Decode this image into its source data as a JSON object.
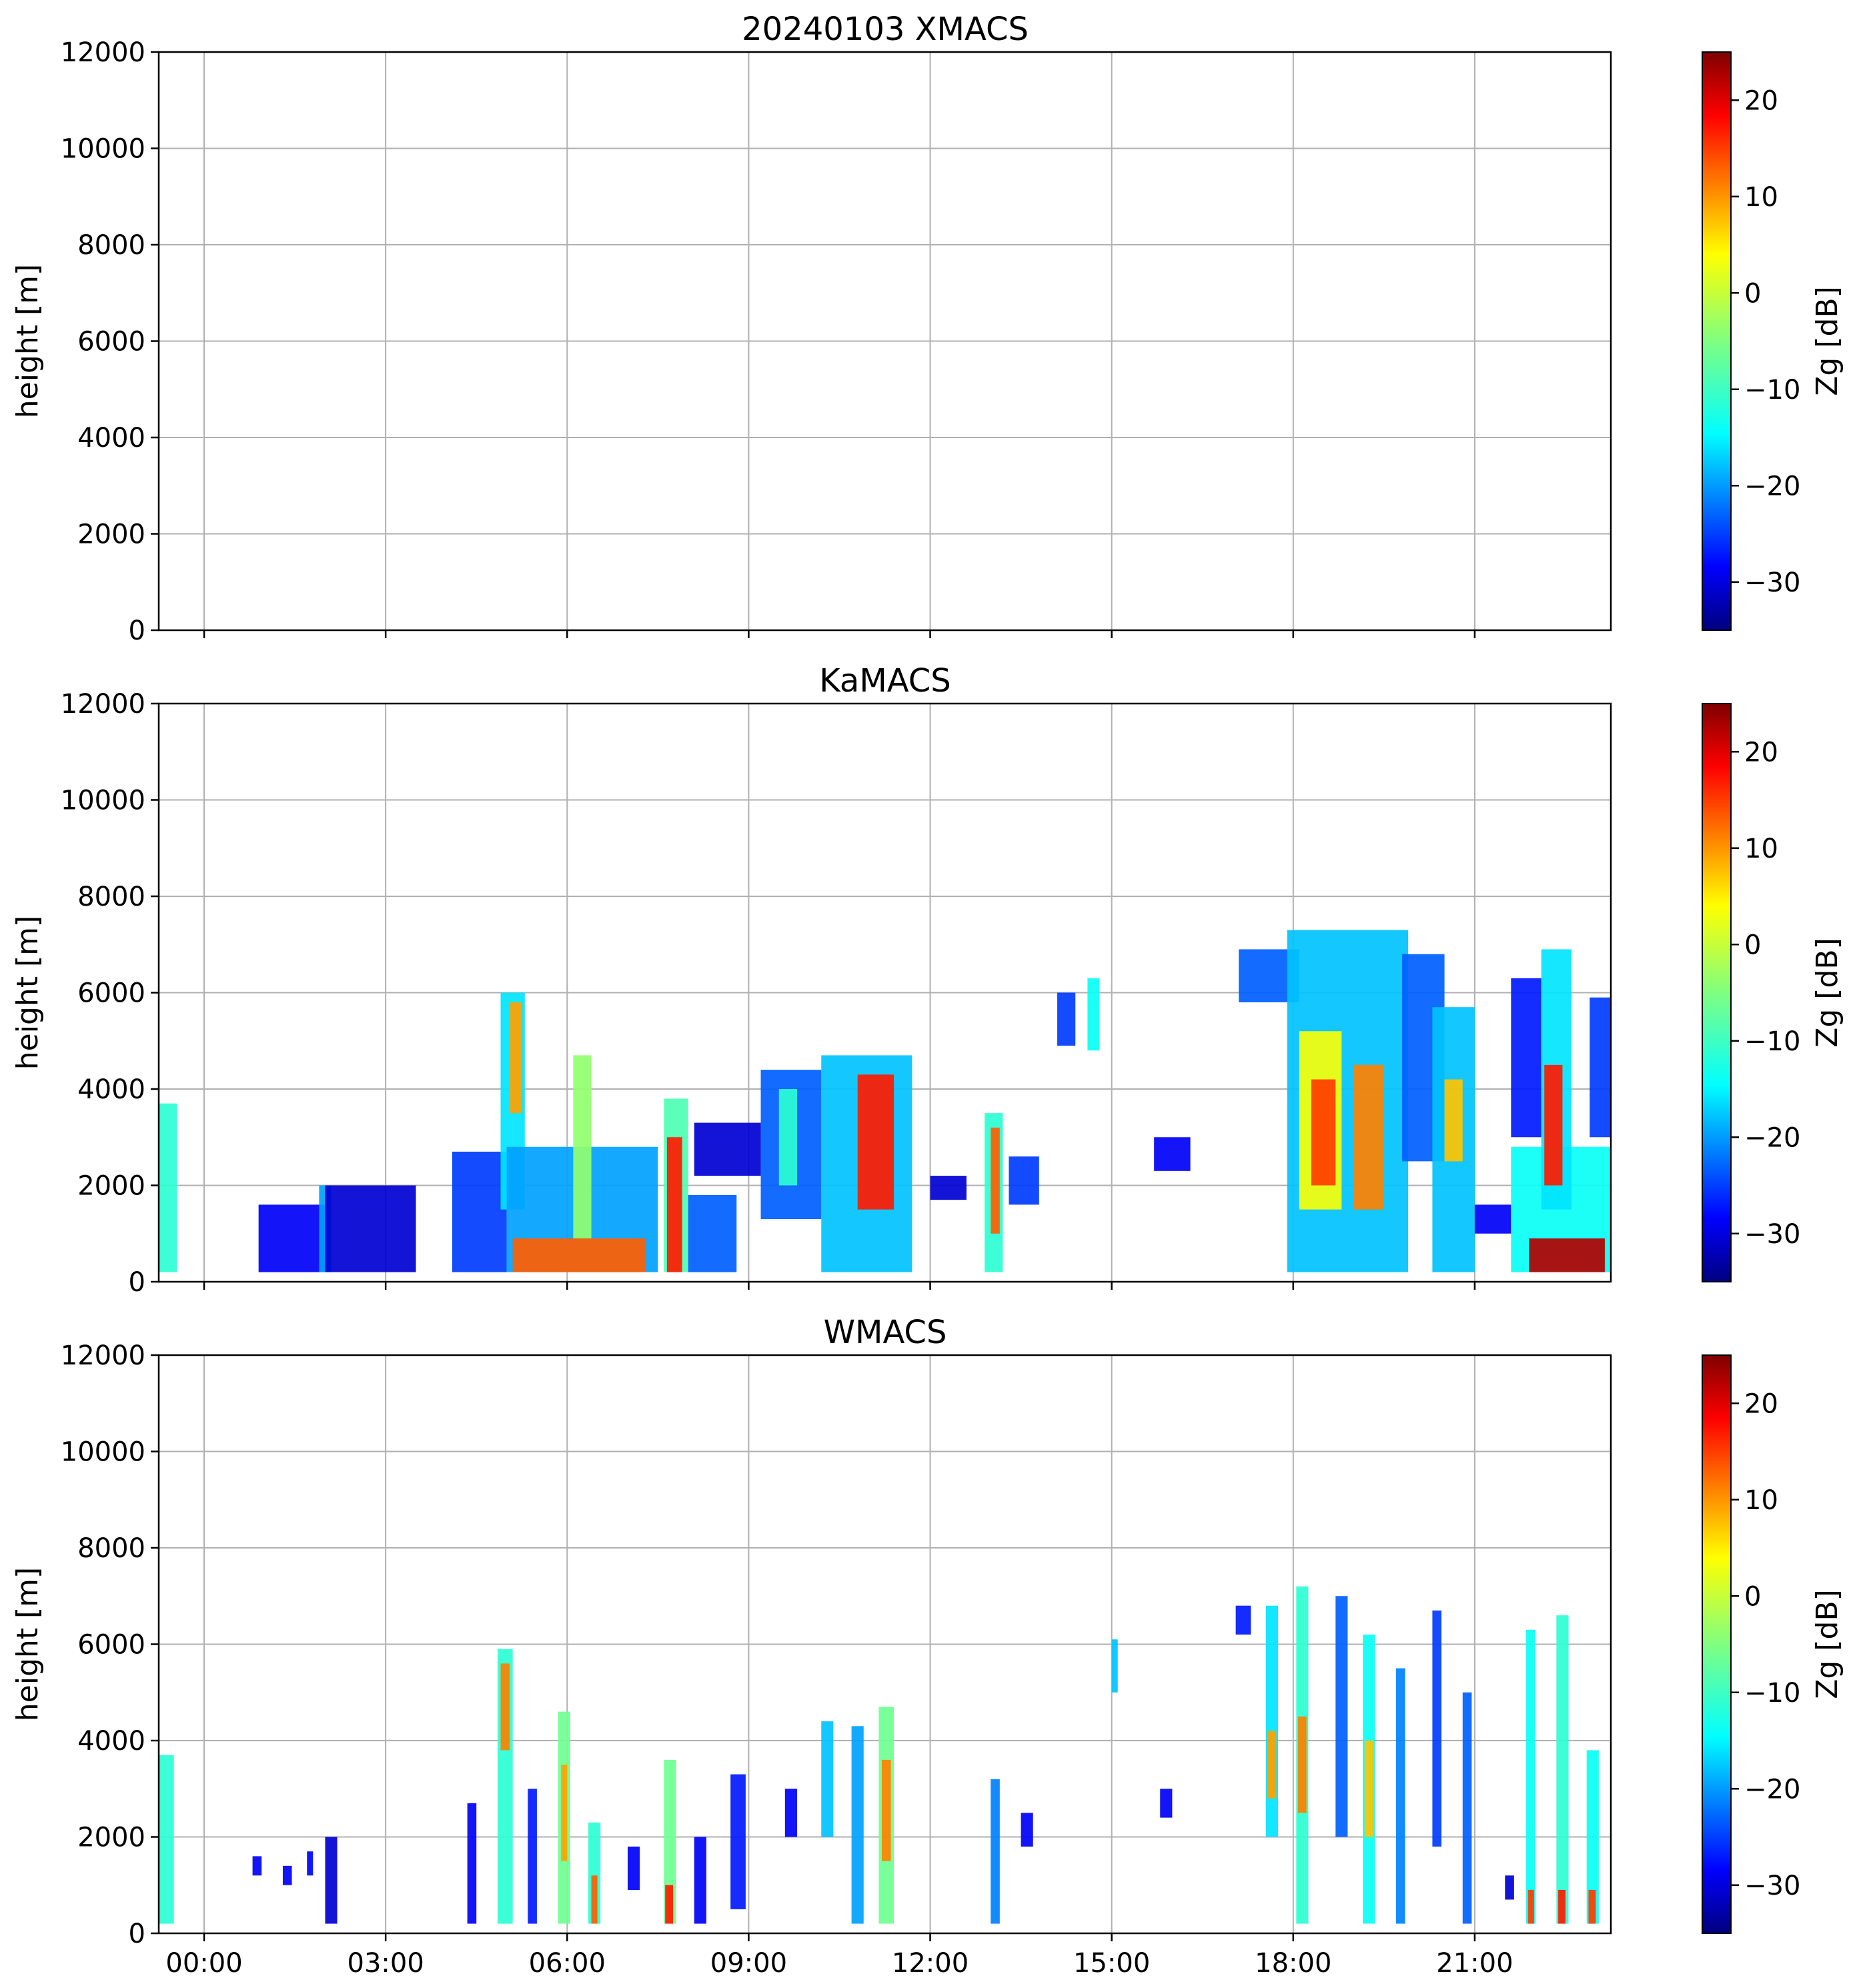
{
  "chart_data": [
    {
      "type": "heatmap",
      "title": "20240103 XMACS",
      "ylabel": "height [m]",
      "xlabel": "",
      "ylim": [
        0,
        12000
      ],
      "yticks": [
        0,
        2000,
        4000,
        6000,
        8000,
        10000,
        12000
      ],
      "xlim_hours": [
        -0.75,
        23.25
      ],
      "xticks": [],
      "grid": true,
      "colorbar": {
        "label": "Zg [dB]",
        "range": [
          -35,
          25
        ],
        "ticks": [
          -30,
          -20,
          -10,
          0,
          10,
          20
        ],
        "colormap": "jet"
      },
      "cells": []
    },
    {
      "type": "heatmap",
      "title": "KaMACS",
      "ylabel": "height [m]",
      "xlabel": "",
      "ylim": [
        0,
        12000
      ],
      "yticks": [
        0,
        2000,
        4000,
        6000,
        8000,
        10000,
        12000
      ],
      "xlim_hours": [
        -0.75,
        23.25
      ],
      "xticks": [],
      "grid": true,
      "colorbar": {
        "label": "Zg [dB]",
        "range": [
          -35,
          25
        ],
        "ticks": [
          -30,
          -20,
          -10,
          0,
          10,
          20
        ],
        "colormap": "jet"
      },
      "cells": [
        {
          "t0": -0.75,
          "t1": -0.45,
          "h0": 200,
          "h1": 3700,
          "z": -10
        },
        {
          "t0": 0.9,
          "t1": 2.0,
          "h0": 200,
          "h1": 1600,
          "z": -28
        },
        {
          "t0": 1.9,
          "t1": 2.1,
          "h0": 200,
          "h1": 2000,
          "z": -18
        },
        {
          "t0": 2.0,
          "t1": 3.5,
          "h0": 200,
          "h1": 2000,
          "z": -30
        },
        {
          "t0": 4.1,
          "t1": 5.0,
          "h0": 200,
          "h1": 2700,
          "z": -24
        },
        {
          "t0": 4.9,
          "t1": 5.3,
          "h0": 1500,
          "h1": 6000,
          "z": -14
        },
        {
          "t0": 5.05,
          "t1": 5.25,
          "h0": 3500,
          "h1": 5800,
          "z": 8
        },
        {
          "t0": 5.0,
          "t1": 7.5,
          "h0": 200,
          "h1": 2800,
          "z": -18
        },
        {
          "t0": 5.1,
          "t1": 7.3,
          "h0": 200,
          "h1": 900,
          "z": 12
        },
        {
          "t0": 6.1,
          "t1": 6.4,
          "h0": 900,
          "h1": 4700,
          "z": -4
        },
        {
          "t0": 7.6,
          "t1": 8.0,
          "h0": 200,
          "h1": 3800,
          "z": -8
        },
        {
          "t0": 7.65,
          "t1": 7.9,
          "h0": 200,
          "h1": 3000,
          "z": 16
        },
        {
          "t0": 8.0,
          "t1": 8.8,
          "h0": 200,
          "h1": 1800,
          "z": -22
        },
        {
          "t0": 8.1,
          "t1": 9.2,
          "h0": 2200,
          "h1": 3300,
          "z": -30
        },
        {
          "t0": 9.2,
          "t1": 10.2,
          "h0": 1300,
          "h1": 4400,
          "z": -22
        },
        {
          "t0": 9.5,
          "t1": 9.8,
          "h0": 2000,
          "h1": 4000,
          "z": -10
        },
        {
          "t0": 10.2,
          "t1": 11.7,
          "h0": 200,
          "h1": 4700,
          "z": -16
        },
        {
          "t0": 10.8,
          "t1": 11.4,
          "h0": 1500,
          "h1": 4300,
          "z": 16
        },
        {
          "t0": 12.0,
          "t1": 12.6,
          "h0": 1700,
          "h1": 2200,
          "z": -30
        },
        {
          "t0": 12.9,
          "t1": 13.2,
          "h0": 200,
          "h1": 3500,
          "z": -10
        },
        {
          "t0": 13.0,
          "t1": 13.15,
          "h0": 1000,
          "h1": 3200,
          "z": 12
        },
        {
          "t0": 13.3,
          "t1": 13.8,
          "h0": 1600,
          "h1": 2600,
          "z": -24
        },
        {
          "t0": 14.1,
          "t1": 14.4,
          "h0": 4900,
          "h1": 6000,
          "z": -24
        },
        {
          "t0": 14.6,
          "t1": 14.8,
          "h0": 4800,
          "h1": 6300,
          "z": -12
        },
        {
          "t0": 15.7,
          "t1": 16.3,
          "h0": 2300,
          "h1": 3000,
          "z": -28
        },
        {
          "t0": 17.1,
          "t1": 18.1,
          "h0": 5800,
          "h1": 6900,
          "z": -22
        },
        {
          "t0": 17.9,
          "t1": 19.9,
          "h0": 200,
          "h1": 7300,
          "z": -16
        },
        {
          "t0": 18.1,
          "t1": 18.8,
          "h0": 1500,
          "h1": 5200,
          "z": 2
        },
        {
          "t0": 18.3,
          "t1": 18.7,
          "h0": 2000,
          "h1": 4200,
          "z": 14
        },
        {
          "t0": 19.0,
          "t1": 19.5,
          "h0": 1500,
          "h1": 4500,
          "z": 10
        },
        {
          "t0": 19.8,
          "t1": 20.5,
          "h0": 2500,
          "h1": 6800,
          "z": -22
        },
        {
          "t0": 20.3,
          "t1": 21.0,
          "h0": 200,
          "h1": 5700,
          "z": -16
        },
        {
          "t0": 20.5,
          "t1": 20.8,
          "h0": 2500,
          "h1": 4200,
          "z": 6
        },
        {
          "t0": 21.0,
          "t1": 21.6,
          "h0": 1000,
          "h1": 1600,
          "z": -28
        },
        {
          "t0": 21.6,
          "t1": 22.1,
          "h0": 3000,
          "h1": 6300,
          "z": -26
        },
        {
          "t0": 21.6,
          "t1": 23.25,
          "h0": 200,
          "h1": 2800,
          "z": -12
        },
        {
          "t0": 22.1,
          "t1": 22.6,
          "h0": 1500,
          "h1": 6900,
          "z": -14
        },
        {
          "t0": 22.15,
          "t1": 22.45,
          "h0": 2000,
          "h1": 4500,
          "z": 16
        },
        {
          "t0": 21.9,
          "t1": 23.15,
          "h0": 200,
          "h1": 900,
          "z": 22
        },
        {
          "t0": 22.9,
          "t1": 23.25,
          "h0": 3000,
          "h1": 5900,
          "z": -24
        }
      ]
    },
    {
      "type": "heatmap",
      "title": "WMACS",
      "ylabel": "height [m]",
      "xlabel": "",
      "ylim": [
        0,
        12000
      ],
      "yticks": [
        0,
        2000,
        4000,
        6000,
        8000,
        10000,
        12000
      ],
      "xlim_hours": [
        -0.75,
        23.25
      ],
      "xticks": [
        "00:00",
        "03:00",
        "06:00",
        "09:00",
        "12:00",
        "15:00",
        "18:00",
        "21:00"
      ],
      "xtick_hours": [
        0,
        3,
        6,
        9,
        12,
        15,
        18,
        21
      ],
      "grid": true,
      "colorbar": {
        "label": "Zg [dB]",
        "range": [
          -35,
          25
        ],
        "ticks": [
          -30,
          -20,
          -10,
          0,
          10,
          20
        ],
        "colormap": "jet"
      },
      "cells": [
        {
          "t0": -0.75,
          "t1": -0.5,
          "h0": 200,
          "h1": 3700,
          "z": -10
        },
        {
          "t0": 0.8,
          "t1": 0.95,
          "h0": 1200,
          "h1": 1600,
          "z": -28
        },
        {
          "t0": 1.3,
          "t1": 1.45,
          "h0": 1000,
          "h1": 1400,
          "z": -28
        },
        {
          "t0": 1.7,
          "t1": 1.8,
          "h0": 1200,
          "h1": 1700,
          "z": -28
        },
        {
          "t0": 2.0,
          "t1": 2.2,
          "h0": 200,
          "h1": 2000,
          "z": -30
        },
        {
          "t0": 4.35,
          "t1": 4.5,
          "h0": 200,
          "h1": 2700,
          "z": -28
        },
        {
          "t0": 4.85,
          "t1": 5.1,
          "h0": 200,
          "h1": 5900,
          "z": -10
        },
        {
          "t0": 4.9,
          "t1": 5.05,
          "h0": 3800,
          "h1": 5600,
          "z": 10
        },
        {
          "t0": 5.35,
          "t1": 5.5,
          "h0": 200,
          "h1": 3000,
          "z": -26
        },
        {
          "t0": 5.85,
          "t1": 6.05,
          "h0": 200,
          "h1": 4600,
          "z": -6
        },
        {
          "t0": 5.9,
          "t1": 6.0,
          "h0": 1500,
          "h1": 3500,
          "z": 8
        },
        {
          "t0": 6.35,
          "t1": 6.55,
          "h0": 200,
          "h1": 2300,
          "z": -10
        },
        {
          "t0": 6.4,
          "t1": 6.5,
          "h0": 200,
          "h1": 1200,
          "z": 12
        },
        {
          "t0": 7.0,
          "t1": 7.2,
          "h0": 900,
          "h1": 1800,
          "z": -28
        },
        {
          "t0": 7.6,
          "t1": 7.8,
          "h0": 200,
          "h1": 3600,
          "z": -6
        },
        {
          "t0": 7.62,
          "t1": 7.75,
          "h0": 200,
          "h1": 1000,
          "z": 16
        },
        {
          "t0": 8.1,
          "t1": 8.3,
          "h0": 200,
          "h1": 2000,
          "z": -28
        },
        {
          "t0": 8.7,
          "t1": 8.95,
          "h0": 500,
          "h1": 3300,
          "z": -26
        },
        {
          "t0": 9.6,
          "t1": 9.8,
          "h0": 2000,
          "h1": 3000,
          "z": -28
        },
        {
          "t0": 10.2,
          "t1": 10.4,
          "h0": 2000,
          "h1": 4400,
          "z": -16
        },
        {
          "t0": 10.7,
          "t1": 10.9,
          "h0": 200,
          "h1": 4300,
          "z": -18
        },
        {
          "t0": 11.15,
          "t1": 11.4,
          "h0": 200,
          "h1": 4700,
          "z": -6
        },
        {
          "t0": 11.2,
          "t1": 11.35,
          "h0": 1500,
          "h1": 3600,
          "z": 10
        },
        {
          "t0": 13.0,
          "t1": 13.15,
          "h0": 200,
          "h1": 3200,
          "z": -20
        },
        {
          "t0": 13.5,
          "t1": 13.7,
          "h0": 1800,
          "h1": 2500,
          "z": -28
        },
        {
          "t0": 15.0,
          "t1": 15.1,
          "h0": 5000,
          "h1": 6100,
          "z": -16
        },
        {
          "t0": 15.8,
          "t1": 16.0,
          "h0": 2400,
          "h1": 3000,
          "z": -28
        },
        {
          "t0": 17.05,
          "t1": 17.3,
          "h0": 6200,
          "h1": 6800,
          "z": -26
        },
        {
          "t0": 17.55,
          "t1": 17.75,
          "h0": 2000,
          "h1": 6800,
          "z": -14
        },
        {
          "t0": 17.58,
          "t1": 17.72,
          "h0": 2800,
          "h1": 4200,
          "z": 8
        },
        {
          "t0": 18.05,
          "t1": 18.25,
          "h0": 200,
          "h1": 7200,
          "z": -10
        },
        {
          "t0": 18.08,
          "t1": 18.22,
          "h0": 2500,
          "h1": 4500,
          "z": 10
        },
        {
          "t0": 18.7,
          "t1": 18.9,
          "h0": 2000,
          "h1": 7000,
          "z": -22
        },
        {
          "t0": 19.15,
          "t1": 19.35,
          "h0": 200,
          "h1": 6200,
          "z": -12
        },
        {
          "t0": 19.18,
          "t1": 19.32,
          "h0": 2000,
          "h1": 4000,
          "z": 6
        },
        {
          "t0": 19.7,
          "t1": 19.85,
          "h0": 200,
          "h1": 5500,
          "z": -20
        },
        {
          "t0": 20.3,
          "t1": 20.45,
          "h0": 1800,
          "h1": 6700,
          "z": -24
        },
        {
          "t0": 20.8,
          "t1": 20.95,
          "h0": 200,
          "h1": 5000,
          "z": -22
        },
        {
          "t0": 21.5,
          "t1": 21.65,
          "h0": 700,
          "h1": 1200,
          "z": -30
        },
        {
          "t0": 21.85,
          "t1": 22.0,
          "h0": 200,
          "h1": 6300,
          "z": -12
        },
        {
          "t0": 21.88,
          "t1": 21.98,
          "h0": 200,
          "h1": 900,
          "z": 14
        },
        {
          "t0": 22.35,
          "t1": 22.55,
          "h0": 200,
          "h1": 6600,
          "z": -10
        },
        {
          "t0": 22.38,
          "t1": 22.5,
          "h0": 200,
          "h1": 900,
          "z": 16
        },
        {
          "t0": 22.85,
          "t1": 23.05,
          "h0": 200,
          "h1": 3800,
          "z": -12
        },
        {
          "t0": 22.88,
          "t1": 23.0,
          "h0": 200,
          "h1": 900,
          "z": 14
        }
      ]
    }
  ]
}
